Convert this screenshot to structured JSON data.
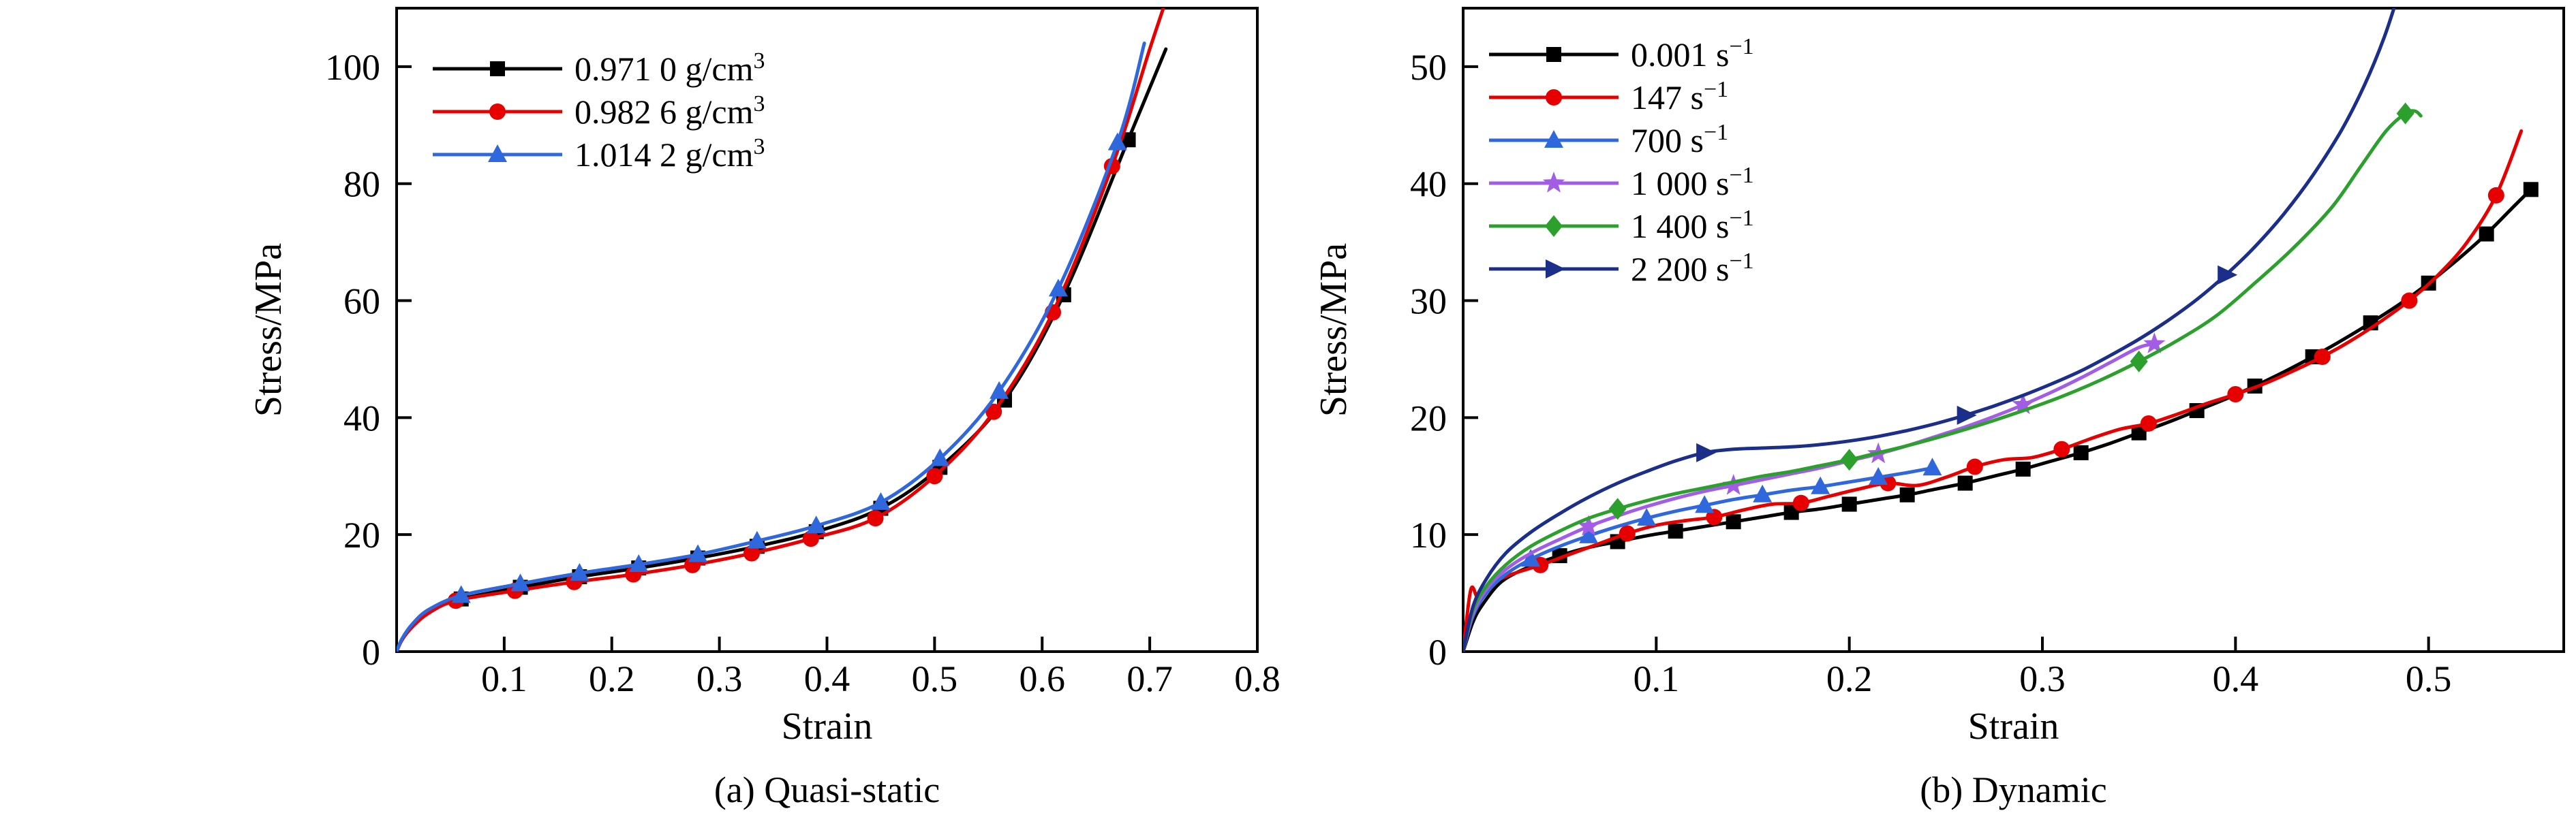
{
  "figure": {
    "background": "#ffffff"
  },
  "chart_data": [
    {
      "type": "line",
      "caption": "(a) Quasi-static",
      "xlabel": "Strain",
      "ylabel": "Stress/MPa",
      "xlim": [
        0,
        0.8
      ],
      "ylim": [
        0,
        110
      ],
      "xticks": [
        0.1,
        0.2,
        0.3,
        0.4,
        0.5,
        0.6,
        0.7,
        0.8
      ],
      "xtick_labels": [
        "0.1",
        "0.2",
        "0.3",
        "0.4",
        "0.5",
        "0.6",
        "0.7",
        "0.8"
      ],
      "yticks": [
        0,
        20,
        40,
        60,
        80,
        100
      ],
      "ytick_labels": [
        "0",
        "20",
        "40",
        "60",
        "80",
        "100"
      ],
      "grid": false,
      "legend_position": "top-left",
      "series": [
        {
          "label": "0.971 0 g/cm",
          "label_sup": "3",
          "color": "#000000",
          "marker": "square",
          "marker_offset": 4,
          "marker_every": 1,
          "marker_skip_end": 1,
          "x": [
            0,
            0.005,
            0.015,
            0.03,
            0.06,
            0.115,
            0.17,
            0.225,
            0.28,
            0.335,
            0.39,
            0.45,
            0.505,
            0.565,
            0.62,
            0.68,
            0.715
          ],
          "y": [
            0,
            2,
            4.5,
            7,
            9,
            11,
            12.8,
            14.3,
            16,
            18,
            20.5,
            24.5,
            31.5,
            43,
            61,
            87.5,
            103
          ]
        },
        {
          "label": "0.982 6 g/cm",
          "label_sup": "3",
          "color": "#e60000",
          "marker": "circle",
          "marker_offset": 4,
          "marker_every": 1,
          "marker_skip_end": 2,
          "x": [
            0,
            0.005,
            0.015,
            0.03,
            0.055,
            0.11,
            0.165,
            0.22,
            0.275,
            0.33,
            0.385,
            0.445,
            0.5,
            0.555,
            0.61,
            0.665,
            0.7,
            0.72
          ],
          "y": [
            0,
            2,
            4.3,
            6.6,
            8.7,
            10.4,
            11.9,
            13.2,
            14.8,
            16.8,
            19.3,
            22.8,
            30,
            41,
            58,
            83,
            103,
            114
          ]
        },
        {
          "label": "1.014 2 g/cm",
          "label_sup": "3",
          "color": "#2f68dd",
          "marker": "triangle-up",
          "marker_offset": 4,
          "marker_every": 1,
          "marker_skip_end": 1,
          "x": [
            0,
            0.005,
            0.015,
            0.03,
            0.06,
            0.115,
            0.17,
            0.225,
            0.28,
            0.335,
            0.39,
            0.45,
            0.505,
            0.56,
            0.615,
            0.67,
            0.695
          ],
          "y": [
            0,
            2.2,
            4.8,
            7.2,
            9.6,
            11.6,
            13.4,
            14.9,
            16.6,
            18.9,
            21.5,
            25.5,
            33,
            44.5,
            62,
            87,
            104
          ]
        }
      ]
    },
    {
      "type": "line",
      "caption": "(b) Dynamic",
      "xlabel": "Strain",
      "ylabel": "Stress/MPa",
      "xlim": [
        0,
        0.57
      ],
      "ylim": [
        0,
        55
      ],
      "xticks": [
        0.1,
        0.2,
        0.3,
        0.4,
        0.5
      ],
      "xtick_labels": [
        "0.1",
        "0.2",
        "0.3",
        "0.4",
        "0.5"
      ],
      "yticks": [
        0,
        10,
        20,
        30,
        40,
        50
      ],
      "ytick_labels": [
        "0",
        "10",
        "20",
        "30",
        "40",
        "50"
      ],
      "grid": false,
      "legend_position": "top-left",
      "series": [
        {
          "label": "0.001 s",
          "label_sup": "−1",
          "color": "#000000",
          "marker": "square",
          "marker_offset": 5,
          "marker_every": 2,
          "marker_skip_end": 0,
          "x": [
            0,
            0.005,
            0.01,
            0.02,
            0.035,
            0.05,
            0.065,
            0.08,
            0.095,
            0.11,
            0.125,
            0.14,
            0.155,
            0.17,
            0.185,
            0.2,
            0.215,
            0.23,
            0.245,
            0.26,
            0.275,
            0.29,
            0.305,
            0.32,
            0.335,
            0.35,
            0.365,
            0.38,
            0.395,
            0.41,
            0.425,
            0.44,
            0.455,
            0.47,
            0.485,
            0.5,
            0.515,
            0.53,
            0.545,
            0.553
          ],
          "y": [
            0,
            2.5,
            4,
            6,
            7.3,
            8.2,
            8.9,
            9.4,
            9.9,
            10.3,
            10.7,
            11.1,
            11.5,
            11.9,
            12.2,
            12.6,
            13,
            13.4,
            13.9,
            14.4,
            15,
            15.6,
            16.3,
            17,
            17.8,
            18.7,
            19.6,
            20.6,
            21.6,
            22.7,
            23.9,
            25.2,
            26.6,
            28.1,
            29.7,
            31.5,
            33.5,
            35.7,
            38.2,
            39.5
          ]
        },
        {
          "label": "147 s",
          "label_sup": "−1",
          "color": "#e60000",
          "marker": "circle",
          "marker_offset": 5,
          "marker_every": 3,
          "marker_skip_end": 0,
          "x": [
            0,
            0.004,
            0.008,
            0.015,
            0.025,
            0.04,
            0.055,
            0.07,
            0.085,
            0.1,
            0.115,
            0.13,
            0.145,
            0.16,
            0.175,
            0.19,
            0.205,
            0.22,
            0.235,
            0.25,
            0.265,
            0.28,
            0.295,
            0.31,
            0.325,
            0.34,
            0.355,
            0.37,
            0.385,
            0.4,
            0.415,
            0.43,
            0.445,
            0.46,
            0.475,
            0.49,
            0.505,
            0.52,
            0.535,
            0.548
          ],
          "y": [
            0,
            5.3,
            4.6,
            5.8,
            6.6,
            7.4,
            8.3,
            9.2,
            10.1,
            10.8,
            11.2,
            11.5,
            12.1,
            12.6,
            12.7,
            13.3,
            13.9,
            14.4,
            14.2,
            14.9,
            15.8,
            16.4,
            16.6,
            17.3,
            18.2,
            19,
            19.5,
            20.3,
            21.2,
            22,
            22.9,
            24,
            25.2,
            26.6,
            28.2,
            30,
            32.2,
            35,
            39,
            44.5
          ]
        },
        {
          "label": "700 s",
          "label_sup": "−1",
          "color": "#2f68dd",
          "marker": "triangle-up",
          "marker_offset": 4,
          "marker_every": 2,
          "marker_skip_end": 0,
          "x": [
            0,
            0.005,
            0.012,
            0.022,
            0.035,
            0.05,
            0.065,
            0.08,
            0.095,
            0.11,
            0.125,
            0.14,
            0.155,
            0.17,
            0.185,
            0.2,
            0.215,
            0.23,
            0.243
          ],
          "y": [
            0,
            3,
            5,
            6.6,
            7.9,
            9,
            9.9,
            10.7,
            11.4,
            12,
            12.5,
            13,
            13.4,
            13.8,
            14.1,
            14.5,
            14.9,
            15.3,
            15.7
          ]
        },
        {
          "label": "1 000 s",
          "label_sup": "−1",
          "color": "#a25ce6",
          "marker": "star",
          "marker_offset": 6,
          "marker_every": 5,
          "marker_skip_end": 0,
          "x": [
            0,
            0.005,
            0.012,
            0.022,
            0.035,
            0.05,
            0.065,
            0.08,
            0.095,
            0.11,
            0.125,
            0.14,
            0.155,
            0.17,
            0.185,
            0.2,
            0.215,
            0.23,
            0.245,
            0.26,
            0.275,
            0.29,
            0.305,
            0.32,
            0.335,
            0.35,
            0.358
          ],
          "y": [
            0,
            3.2,
            5.3,
            7,
            8.4,
            9.6,
            10.7,
            11.6,
            12.4,
            13.1,
            13.7,
            14.2,
            14.7,
            15.2,
            15.7,
            16.3,
            16.9,
            17.6,
            18.4,
            19.2,
            20.1,
            21.1,
            22.2,
            23.4,
            24.7,
            26,
            26.3
          ]
        },
        {
          "label": "1 400 s",
          "label_sup": "−1",
          "color": "#2ca02c",
          "marker": "diamond",
          "marker_offset": 7,
          "marker_every": 8,
          "marker_skip_end": 0,
          "x": [
            0,
            0.005,
            0.012,
            0.022,
            0.035,
            0.05,
            0.065,
            0.08,
            0.095,
            0.11,
            0.125,
            0.14,
            0.155,
            0.17,
            0.185,
            0.2,
            0.215,
            0.23,
            0.25,
            0.27,
            0.29,
            0.31,
            0.33,
            0.35,
            0.37,
            0.39,
            0.41,
            0.43,
            0.45,
            0.465,
            0.478,
            0.488,
            0.493,
            0.496
          ],
          "y": [
            0,
            3.5,
            5.6,
            7.4,
            9,
            10.3,
            11.4,
            12.2,
            12.9,
            13.5,
            14,
            14.5,
            15,
            15.4,
            15.9,
            16.4,
            17,
            17.6,
            18.5,
            19.5,
            20.6,
            21.8,
            23.2,
            24.8,
            26.6,
            28.7,
            31.5,
            34.5,
            38,
            41.5,
            44.5,
            46,
            46.2,
            45.8
          ]
        },
        {
          "label": "2 200 s",
          "label_sup": "−1",
          "color": "#1b2f8a",
          "marker": "triangle-right",
          "marker_offset": 10,
          "marker_every": 9,
          "marker_skip_end": 0,
          "x": [
            0,
            0.005,
            0.012,
            0.022,
            0.035,
            0.05,
            0.065,
            0.08,
            0.095,
            0.11,
            0.125,
            0.14,
            0.155,
            0.17,
            0.185,
            0.2,
            0.215,
            0.23,
            0.245,
            0.26,
            0.275,
            0.29,
            0.305,
            0.32,
            0.335,
            0.35,
            0.365,
            0.38,
            0.395,
            0.41,
            0.425,
            0.44,
            0.455,
            0.467,
            0.477,
            0.485
          ],
          "y": [
            0,
            3.8,
            6.2,
            8.4,
            10.2,
            11.8,
            13.2,
            14.4,
            15.4,
            16.3,
            17,
            17.3,
            17.4,
            17.5,
            17.7,
            18,
            18.4,
            18.9,
            19.5,
            20.2,
            21,
            21.9,
            22.9,
            24,
            25.3,
            26.7,
            28.3,
            30.1,
            32.2,
            34.6,
            37.4,
            40.7,
            44.6,
            48.5,
            52.5,
            56.5
          ]
        }
      ]
    }
  ]
}
